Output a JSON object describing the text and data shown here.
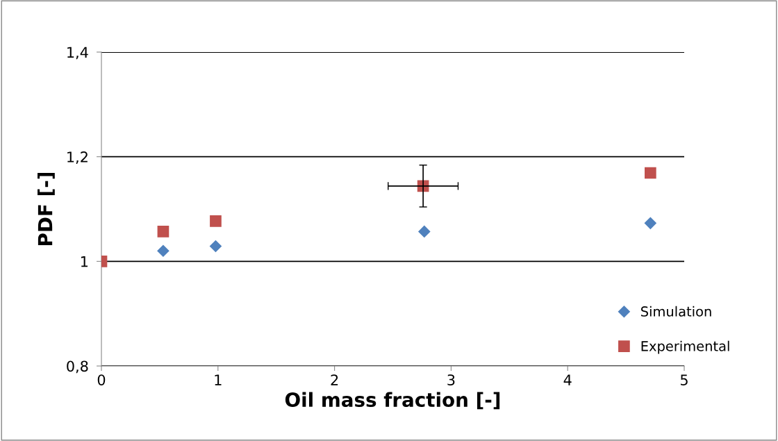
{
  "chart_data": {
    "type": "scatter",
    "xlabel": "Oil mass fraction [-]",
    "ylabel": "PDF [-]",
    "xlim": [
      0,
      5
    ],
    "xticks": [
      0,
      1,
      2,
      3,
      4,
      5
    ],
    "ylim": [
      0.8,
      1.4
    ],
    "yticks": [
      {
        "value": 0.8,
        "label": "0,8"
      },
      1,
      {
        "value": 1.2,
        "label": "1,2"
      },
      {
        "value": 1.4,
        "label": "1,4"
      }
    ],
    "grid": "y",
    "legend": "bottom right",
    "series": [
      {
        "name": "Simulation",
        "color": "#4f81bd",
        "marker": "diamond",
        "x": [
          0.53,
          0.98,
          2.77,
          4.71
        ],
        "values": [
          1.02,
          1.029,
          1.057,
          1.073
        ]
      },
      {
        "name": "Experimental",
        "color": "#c0504d",
        "marker": "square",
        "x": [
          0,
          0.53,
          0.98,
          2.76,
          4.71
        ],
        "values": [
          1.0,
          1.057,
          1.077,
          1.144,
          1.169
        ],
        "errors": [
          null,
          null,
          null,
          0.04,
          null
        ],
        "xerrors": [
          null,
          null,
          null,
          0.3,
          null
        ]
      }
    ]
  }
}
